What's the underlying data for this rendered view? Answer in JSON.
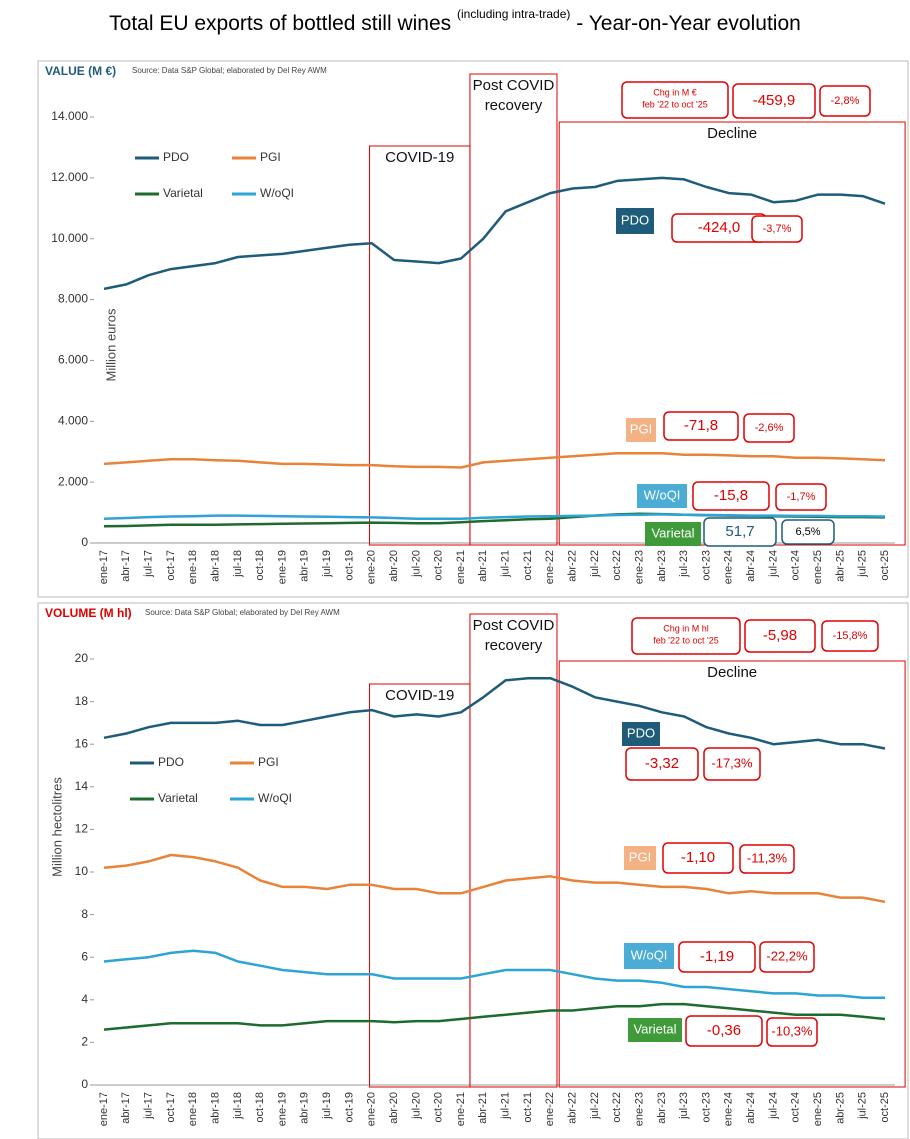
{
  "header": {
    "title": "Total EU exports of bottled still wines",
    "title_note": "(including intra-trade)",
    "title_suffix": "- Year-on-Year evolution"
  },
  "chart_data": [
    {
      "type": "line",
      "title": "VALUE (M €)",
      "source": "Source:  Data S&P Global;  elaborated by Del Rey AWM",
      "y_label": "Million euros",
      "categories": [
        "ene-17",
        "abr-17",
        "jul-17",
        "oct-17",
        "ene-18",
        "abr-18",
        "jul-18",
        "oct-18",
        "ene-19",
        "abr-19",
        "jul-19",
        "oct-19",
        "ene-20",
        "abr-20",
        "jul-20",
        "oct-20",
        "ene-21",
        "abr-21",
        "jul-21",
        "oct-21",
        "ene-22",
        "abr-22",
        "jul-22",
        "oct-22",
        "ene-23",
        "abr-23",
        "jul-23",
        "oct-23",
        "ene-24",
        "abr-24",
        "jul-24",
        "oct-24",
        "ene-25",
        "abr-25",
        "jul-25",
        "oct-25"
      ],
      "ylim": [
        0,
        14000
      ],
      "yticks": [
        0,
        {
          "value": 2000,
          "label": "2.000"
        },
        {
          "value": 4000,
          "label": "4.000"
        },
        {
          "value": 6000,
          "label": "6.000"
        },
        {
          "value": 8000,
          "label": "8.000"
        },
        {
          "value": 10000,
          "label": "10.000"
        },
        {
          "value": 12000,
          "label": "12.000"
        },
        {
          "value": 14000,
          "label": "14.000"
        }
      ],
      "series": [
        {
          "name": "PDO",
          "color": "#1f5c7a",
          "values": [
            8350,
            8500,
            8800,
            9000,
            9100,
            9200,
            9400,
            9450,
            9500,
            9600,
            9700,
            9800,
            9850,
            9300,
            9250,
            9200,
            9350,
            10000,
            10900,
            11200,
            11500,
            11650,
            11700,
            11900,
            11950,
            12000,
            11950,
            11700,
            11500,
            11450,
            11200,
            11250,
            11450,
            11450,
            11400,
            11150
          ]
        },
        {
          "name": "PGI",
          "color": "#e8833a",
          "values": [
            2600,
            2650,
            2700,
            2750,
            2750,
            2720,
            2700,
            2650,
            2600,
            2600,
            2580,
            2560,
            2560,
            2520,
            2500,
            2500,
            2480,
            2650,
            2700,
            2750,
            2800,
            2850,
            2900,
            2950,
            2950,
            2950,
            2900,
            2900,
            2880,
            2850,
            2850,
            2800,
            2800,
            2780,
            2750,
            2720
          ]
        },
        {
          "name": "Varietal",
          "color": "#1e6b2e",
          "values": [
            550,
            560,
            580,
            600,
            600,
            600,
            610,
            620,
            630,
            640,
            650,
            660,
            670,
            660,
            650,
            650,
            680,
            720,
            750,
            780,
            800,
            850,
            900,
            940,
            960,
            950,
            930,
            910,
            900,
            890,
            880,
            870,
            860,
            850,
            850,
            840
          ]
        },
        {
          "name": "W/oQI",
          "color": "#2ea3d5",
          "values": [
            800,
            820,
            850,
            870,
            880,
            900,
            900,
            890,
            880,
            870,
            860,
            850,
            840,
            820,
            800,
            800,
            800,
            830,
            850,
            870,
            880,
            890,
            900,
            920,
            930,
            940,
            930,
            920,
            910,
            900,
            900,
            890,
            890,
            880,
            880,
            870
          ]
        }
      ],
      "periods": [
        [
          "COVID-19"
        ],
        [
          "Post COVID",
          "recovery"
        ],
        [
          "Decline"
        ]
      ],
      "change_header": [
        "Chg in M €",
        "feb '22 to oct '25"
      ],
      "total_change": "-459,9",
      "total_change_pct": "-2,8%",
      "series_changes": [
        {
          "value": "-424,0",
          "pct": "-3,7%"
        },
        {
          "value": "-71,8",
          "pct": "-2,6%"
        },
        {
          "value": "51,7",
          "pct": "6,5%"
        },
        {
          "value": "-15,8",
          "pct": "-1,7%"
        }
      ]
    },
    {
      "type": "line",
      "title": "VOLUME (M hl)",
      "source": "Source:  Data S&P Global;  elaborated by Del Rey AWM",
      "y_label": "Million hectolitres",
      "categories": [
        "ene-17",
        "abr-17",
        "jul-17",
        "oct-17",
        "ene-18",
        "abr-18",
        "jul-18",
        "oct-18",
        "ene-19",
        "abr-19",
        "jul-19",
        "oct-19",
        "ene-20",
        "abr-20",
        "jul-20",
        "oct-20",
        "ene-21",
        "abr-21",
        "jul-21",
        "oct-21",
        "ene-22",
        "abr-22",
        "jul-22",
        "oct-22",
        "ene-23",
        "abr-23",
        "jul-23",
        "oct-23",
        "ene-24",
        "abr-24",
        "jul-24",
        "oct-24",
        "ene-25",
        "abr-25",
        "jul-25",
        "oct-25"
      ],
      "ylim": [
        0,
        20
      ],
      "yticks": [
        0,
        2,
        4,
        6,
        8,
        10,
        12,
        14,
        16,
        18,
        20
      ],
      "series": [
        {
          "name": "PDO",
          "color": "#1f5c7a",
          "values": [
            16.3,
            16.5,
            16.8,
            17.0,
            17.0,
            17.0,
            17.1,
            16.9,
            16.9,
            17.1,
            17.3,
            17.5,
            17.6,
            17.3,
            17.4,
            17.3,
            17.5,
            18.2,
            19.0,
            19.1,
            19.1,
            18.7,
            18.2,
            18.0,
            17.8,
            17.5,
            17.3,
            16.8,
            16.5,
            16.3,
            16.0,
            16.1,
            16.2,
            16.0,
            16.0,
            15.8
          ]
        },
        {
          "name": "PGI",
          "color": "#e8833a",
          "values": [
            10.2,
            10.3,
            10.5,
            10.8,
            10.7,
            10.5,
            10.2,
            9.6,
            9.3,
            9.3,
            9.2,
            9.4,
            9.4,
            9.2,
            9.2,
            9.0,
            9.0,
            9.3,
            9.6,
            9.7,
            9.8,
            9.6,
            9.5,
            9.5,
            9.4,
            9.3,
            9.3,
            9.2,
            9.0,
            9.1,
            9.0,
            9.0,
            9.0,
            8.8,
            8.8,
            8.6
          ]
        },
        {
          "name": "Varietal",
          "color": "#1e6b2e",
          "values": [
            2.6,
            2.7,
            2.8,
            2.9,
            2.9,
            2.9,
            2.9,
            2.8,
            2.8,
            2.9,
            3.0,
            3.0,
            3.0,
            2.95,
            3.0,
            3.0,
            3.1,
            3.2,
            3.3,
            3.4,
            3.5,
            3.5,
            3.6,
            3.7,
            3.7,
            3.8,
            3.8,
            3.7,
            3.6,
            3.5,
            3.4,
            3.3,
            3.3,
            3.3,
            3.2,
            3.1
          ]
        },
        {
          "name": "W/oQI",
          "color": "#2ea3d5",
          "values": [
            5.8,
            5.9,
            6.0,
            6.2,
            6.3,
            6.2,
            5.8,
            5.6,
            5.4,
            5.3,
            5.2,
            5.2,
            5.2,
            5.0,
            5.0,
            5.0,
            5.0,
            5.2,
            5.4,
            5.4,
            5.4,
            5.2,
            5.0,
            4.9,
            4.9,
            4.8,
            4.6,
            4.6,
            4.5,
            4.4,
            4.3,
            4.3,
            4.2,
            4.2,
            4.1,
            4.1
          ]
        }
      ],
      "periods": [
        [
          "COVID-19"
        ],
        [
          "Post COVID",
          "recovery"
        ],
        [
          "Decline"
        ]
      ],
      "change_header": [
        "Chg in M hl",
        "feb '22 to oct '25"
      ],
      "total_change": "-5,98",
      "total_change_pct": "-15,8%",
      "series_changes": [
        {
          "value": "-3,32",
          "pct": "-17,3%"
        },
        {
          "value": "-1,10",
          "pct": "-11,3%"
        },
        {
          "value": "-0,36",
          "pct": "-10,3%"
        },
        {
          "value": "-1,19",
          "pct": "-22,2%"
        }
      ]
    }
  ]
}
